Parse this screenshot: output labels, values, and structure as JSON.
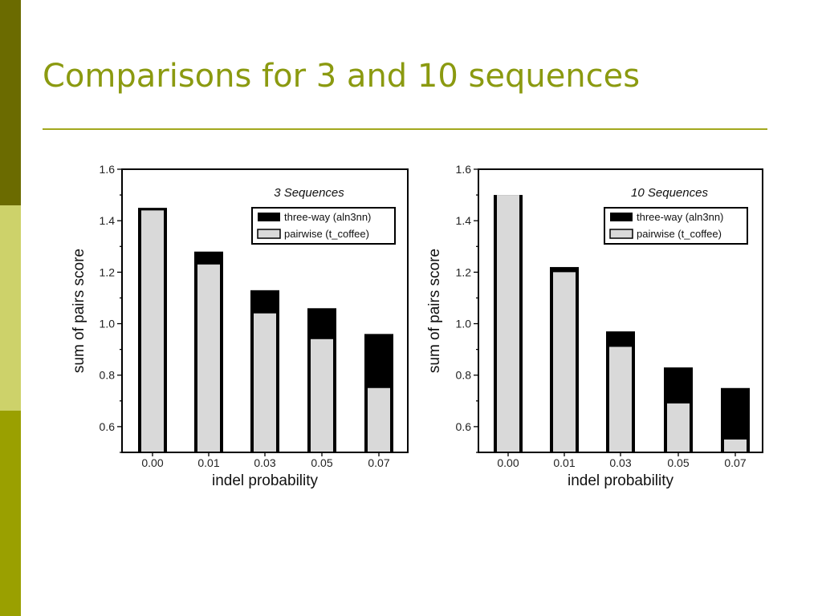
{
  "slide": {
    "title": "Comparisons for 3 and 10 sequences",
    "colors": {
      "title": "#8b9a10",
      "rule": "#a3a81e",
      "strip_top": "#6b6b00",
      "strip_middle": "#cdd26a",
      "strip_bottom": "#9aa000"
    }
  },
  "chart_data": [
    {
      "type": "bar",
      "title": "3 Sequences",
      "xlabel": "indel probability",
      "ylabel": "sum of pairs score",
      "categories": [
        "0.00",
        "0.01",
        "0.03",
        "0.05",
        "0.07"
      ],
      "series": [
        {
          "name": "three-way (aln3nn)",
          "values": [
            1.45,
            1.28,
            1.13,
            1.06,
            0.96
          ],
          "color": "#000000"
        },
        {
          "name": "pairwise (t_coffee)",
          "values": [
            1.44,
            1.23,
            1.04,
            0.94,
            0.75
          ],
          "color": "#d9d9d9"
        }
      ],
      "ylim": [
        0.5,
        1.6
      ],
      "yticks": [
        0.6,
        0.8,
        1.0,
        1.2,
        1.4,
        1.6
      ],
      "ytick_labels": [
        "0.6",
        "0.8",
        "1.0",
        "1.2",
        "1.4",
        "1.6"
      ],
      "legend": "top-right",
      "grid": false
    },
    {
      "type": "bar",
      "title": "10 Sequences",
      "xlabel": "indel probability",
      "ylabel": "sum of pairs score",
      "categories": [
        "0.00",
        "0.01",
        "0.03",
        "0.05",
        "0.07"
      ],
      "series": [
        {
          "name": "three-way (aln3nn)",
          "values": [
            1.5,
            1.22,
            0.97,
            0.83,
            0.75
          ],
          "color": "#000000"
        },
        {
          "name": "pairwise (t_coffee)",
          "values": [
            1.5,
            1.2,
            0.91,
            0.69,
            0.55
          ],
          "color": "#d9d9d9"
        }
      ],
      "ylim": [
        0.5,
        1.6
      ],
      "yticks": [
        0.6,
        0.8,
        1.0,
        1.2,
        1.4,
        1.6
      ],
      "ytick_labels": [
        "0.6",
        "0.8",
        "1.0",
        "1.2",
        "1.4",
        "1.6"
      ],
      "legend": "top-right",
      "grid": false
    }
  ]
}
